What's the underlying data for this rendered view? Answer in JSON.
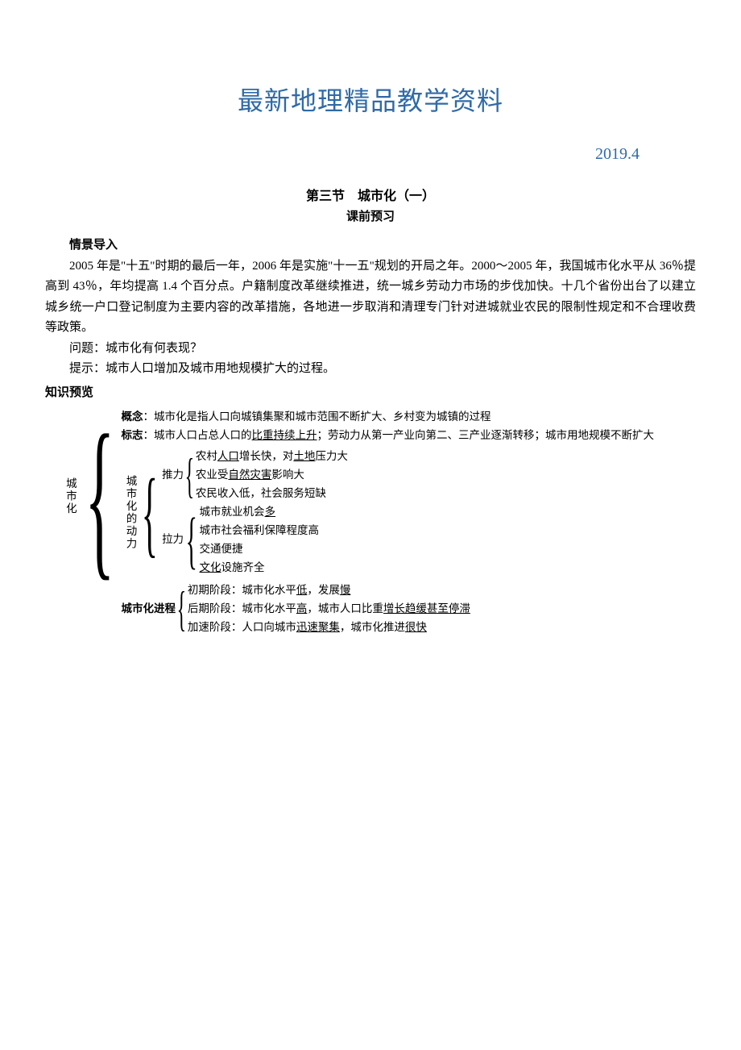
{
  "title": "最新地理精品教学资料",
  "date": "2019.4",
  "section_title": "第三节　城市化（一）",
  "sub_title": "课前预习",
  "scenario_label": "情景导入",
  "paragraph": "2005 年是\"十五\"时期的最后一年，2006 年是实施\"十一五\"规划的开局之年。2000～2005 年，我国城市化水平从 36％提高到 43％，年均提高 1.4 个百分点。户籍制度改革继续推进，统一城乡劳动力市场的步伐加快。十几个省份出台了以建立城乡统一户口登记制度为主要内容的改革措施，各地进一步取消和清理专门针对进城就业农民的限制性规定和不合理收费等政策。",
  "question": "问题：城市化有何表现？",
  "hint": "提示：城市人口增加及城市用地规模扩大的过程。",
  "preview_label": "知识预览",
  "root": "城市化",
  "concept_label": "概念",
  "concept_text": "：城市化是指人口向城镇集聚和城市范围不断扩大、乡村变为城镇的过程",
  "mark_label": "标志",
  "mark_pre": "：城市人口占总人口的",
  "mark_u1": "比重持续上升",
  "mark_mid": "；劳动力从第一产业向第二、三产业逐渐转移；城市用地规模不断扩大",
  "forces_label": "城市化的动力",
  "push_label": "推力",
  "push1_a": "农村",
  "push1_u": "人口",
  "push1_b": "增长快，对",
  "push1_u2": "土地",
  "push1_c": "压力大",
  "push2_a": "农业受",
  "push2_u": "自然灾害",
  "push2_b": "影响大",
  "push3": "农民收入低，社会服务短缺",
  "pull_label": "拉力",
  "pull1_a": "城市就业机会",
  "pull1_u": "多",
  "pull2": "城市社会福利保障程度高",
  "pull3": "交通便捷",
  "pull4_u": "文化",
  "pull4_b": "设施齐全",
  "process_label": "城市化进程",
  "proc1_a": "初期阶段：城市化水平",
  "proc1_u1": "低",
  "proc1_b": "，发展",
  "proc1_u2": "慢",
  "proc2_a": "后期阶段：城市化水平",
  "proc2_u1": "高",
  "proc2_b": "，城市人口比重",
  "proc2_u2": "增长趋缓甚至停滞",
  "proc3_a": "加速阶段：人口向城市",
  "proc3_u1": "迅速聚集",
  "proc3_b": "，城市化推进",
  "proc3_u2": "很快",
  "colors": {
    "title": "#2f6aa8",
    "text": "#000000",
    "bg": "#ffffff"
  }
}
